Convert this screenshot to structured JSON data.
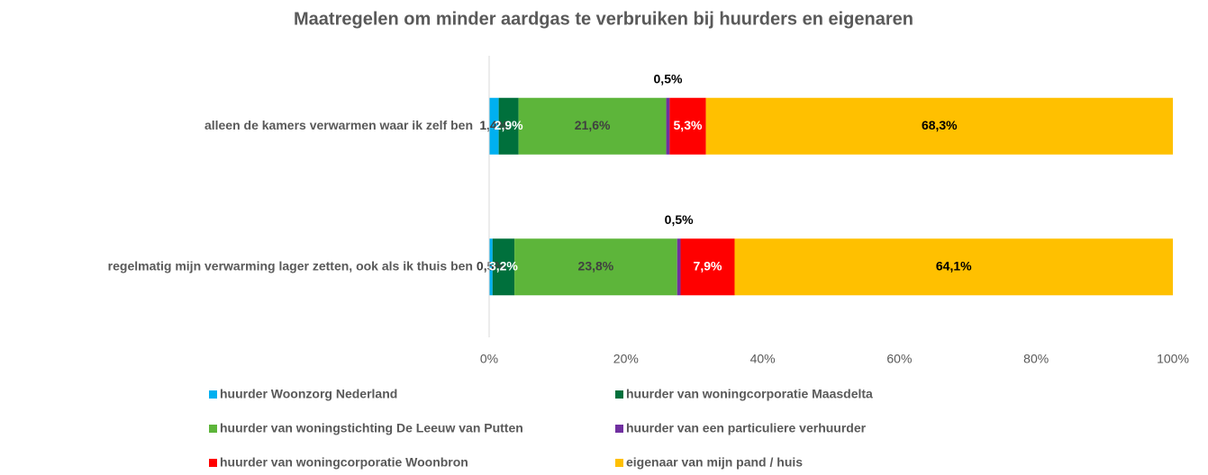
{
  "chart_data": {
    "type": "stacked_barh",
    "title": "Maatregelen om minder aardgas te verbruiken bij huurders en eigenaren",
    "categories": [
      "alleen de kamers verwarmen waar ik zelf ben",
      "regelmatig mijn verwarming lager zetten, ook als ik thuis ben"
    ],
    "series": [
      {
        "name": "huurder Woonzorg Nederland",
        "color": "#00b0f0",
        "label_color": "#404040",
        "values": [
          1.4,
          0.5
        ],
        "value_labels": [
          "1,4%",
          "0,5%"
        ]
      },
      {
        "name": "huurder van woningcorporatie Maasdelta",
        "color": "#00703c",
        "label_color": "#ffffff",
        "values": [
          2.9,
          3.2
        ],
        "value_labels": [
          "2,9%",
          "3,2%"
        ]
      },
      {
        "name": "huurder van woningstichting De Leeuw van Putten",
        "color": "#5db53a",
        "label_color": "#404040",
        "values": [
          21.6,
          23.8
        ],
        "value_labels": [
          "21,6%",
          "23,8%"
        ]
      },
      {
        "name": "huurder van een particuliere verhuurder",
        "color": "#7030a0",
        "label_color": "#000000",
        "values": [
          0.5,
          0.5
        ],
        "value_labels": [
          "0,5%",
          "0,5%"
        ]
      },
      {
        "name": "huurder van woningcorporatie Woonbron",
        "color": "#ff0000",
        "label_color": "#ffffff",
        "values": [
          5.3,
          7.9
        ],
        "value_labels": [
          "5,3%",
          "7,9%"
        ]
      },
      {
        "name": "eigenaar van mijn pand / huis",
        "color": "#ffc000",
        "label_color": "#000000",
        "values": [
          68.3,
          64.1
        ],
        "value_labels": [
          "68,3%",
          "64,1%"
        ]
      }
    ],
    "xlim": [
      0,
      100
    ],
    "xticks": [
      {
        "value": 0,
        "label": "0%"
      },
      {
        "value": 20,
        "label": "20%"
      },
      {
        "value": 40,
        "label": "40%"
      },
      {
        "value": 60,
        "label": "60%"
      },
      {
        "value": 80,
        "label": "80%"
      },
      {
        "value": 100,
        "label": "100%"
      }
    ]
  }
}
